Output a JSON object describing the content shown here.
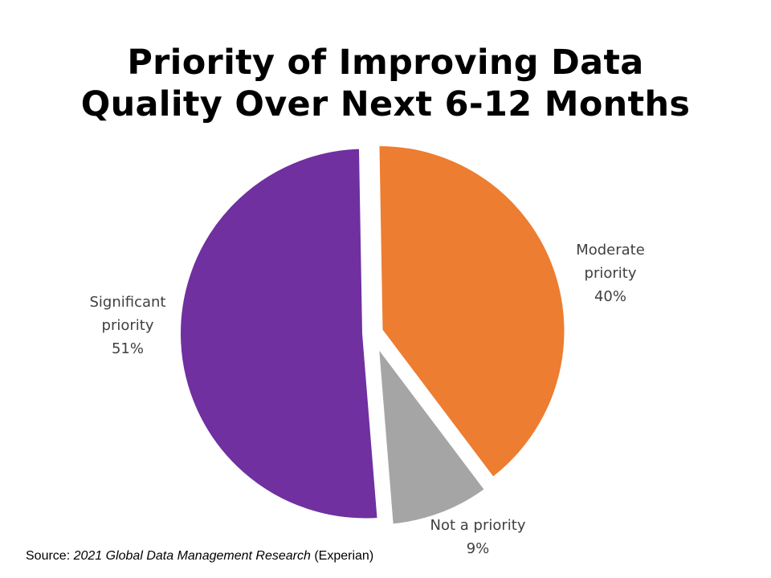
{
  "chart_data": {
    "type": "pie",
    "title_lines": [
      "Priority of Improving Data",
      "Quality Over Next 6-12 Months"
    ],
    "title": "Priority of Improving Data Quality Over Next 6-12 Months",
    "slices": [
      {
        "name": "Moderate priority",
        "label_lines": [
          "Moderate",
          "priority"
        ],
        "value": 40,
        "value_label": "40%",
        "color": "#ED7D31"
      },
      {
        "name": "Not a priority",
        "label_lines": [
          "Not a priority"
        ],
        "value": 9,
        "value_label": "9%",
        "color": "#A5A5A5"
      },
      {
        "name": "Significant priority",
        "label_lines": [
          "Significant",
          "priority"
        ],
        "value": 51,
        "value_label": "51%",
        "color": "#7030A0"
      }
    ],
    "legend": "none"
  },
  "source": {
    "prefix": "Source: ",
    "title": "2021 Global Data Management Research",
    "suffix": " (Experian)"
  }
}
